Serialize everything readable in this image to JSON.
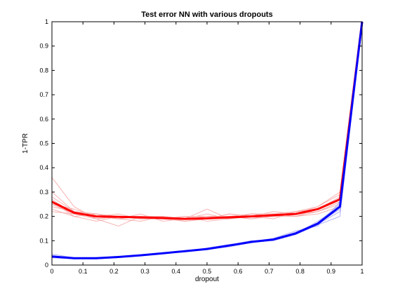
{
  "chart_data": {
    "type": "line",
    "title": "Test error NN with various dropouts",
    "xlabel": "dropout",
    "ylabel": "1-TPR",
    "xlim": [
      0,
      1
    ],
    "ylim": [
      0,
      1
    ],
    "xticks": [
      0,
      0.1,
      0.2,
      0.3,
      0.4,
      0.5,
      0.6,
      0.7,
      0.8,
      0.9,
      1
    ],
    "yticks": [
      0,
      0.1,
      0.2,
      0.3,
      0.4,
      0.5,
      0.6,
      0.7,
      0.8,
      0.9,
      1
    ],
    "x": [
      0,
      0.0714,
      0.1429,
      0.2143,
      0.2857,
      0.3571,
      0.4286,
      0.5,
      0.5714,
      0.6429,
      0.7143,
      0.7857,
      0.8571,
      0.9286,
      1
    ],
    "series": [
      {
        "color": "#ff0000",
        "role": "mean",
        "values": [
          0.26,
          0.215,
          0.2,
          0.198,
          0.196,
          0.193,
          0.19,
          0.192,
          0.196,
          0.2,
          0.205,
          0.21,
          0.23,
          0.27,
          1.0
        ]
      },
      {
        "color": "#0000ff",
        "role": "mean",
        "values": [
          0.035,
          0.028,
          0.028,
          0.033,
          0.04,
          0.048,
          0.057,
          0.066,
          0.08,
          0.095,
          0.105,
          0.13,
          0.17,
          0.24,
          1.0
        ]
      }
    ],
    "runs": [
      {
        "color": "#f5a0a0",
        "lines": [
          [
            0.36,
            0.24,
            0.19,
            0.2,
            0.19,
            0.2,
            0.19,
            0.19,
            0.2,
            0.2,
            0.21,
            0.21,
            0.24,
            0.29,
            1.0
          ],
          [
            0.3,
            0.22,
            0.21,
            0.19,
            0.2,
            0.19,
            0.2,
            0.2,
            0.19,
            0.21,
            0.2,
            0.22,
            0.23,
            0.27,
            1.0
          ],
          [
            0.25,
            0.21,
            0.2,
            0.21,
            0.19,
            0.2,
            0.18,
            0.19,
            0.2,
            0.19,
            0.21,
            0.2,
            0.22,
            0.26,
            1.0
          ],
          [
            0.23,
            0.2,
            0.18,
            0.2,
            0.2,
            0.19,
            0.19,
            0.23,
            0.19,
            0.2,
            0.2,
            0.21,
            0.23,
            0.27,
            1.0
          ],
          [
            0.27,
            0.21,
            0.2,
            0.19,
            0.21,
            0.18,
            0.19,
            0.19,
            0.21,
            0.2,
            0.22,
            0.21,
            0.22,
            0.25,
            1.0
          ],
          [
            0.24,
            0.22,
            0.19,
            0.16,
            0.2,
            0.2,
            0.19,
            0.2,
            0.2,
            0.21,
            0.2,
            0.2,
            0.23,
            0.28,
            1.0
          ],
          [
            0.26,
            0.2,
            0.21,
            0.2,
            0.19,
            0.19,
            0.2,
            0.18,
            0.19,
            0.2,
            0.21,
            0.22,
            0.24,
            0.3,
            1.0
          ],
          [
            0.25,
            0.23,
            0.2,
            0.19,
            0.18,
            0.2,
            0.19,
            0.2,
            0.2,
            0.19,
            0.2,
            0.21,
            0.22,
            0.26,
            1.0
          ],
          [
            0.22,
            0.21,
            0.19,
            0.2,
            0.2,
            0.19,
            0.18,
            0.19,
            0.21,
            0.2,
            0.19,
            0.22,
            0.23,
            0.27,
            1.0
          ],
          [
            0.28,
            0.22,
            0.21,
            0.19,
            0.2,
            0.2,
            0.19,
            0.21,
            0.19,
            0.21,
            0.21,
            0.2,
            0.21,
            0.24,
            1.0
          ]
        ]
      },
      {
        "color": "#a0a0f5",
        "lines": [
          [
            0.045,
            0.03,
            0.026,
            0.03,
            0.042,
            0.05,
            0.055,
            0.07,
            0.085,
            0.095,
            0.1,
            0.125,
            0.165,
            0.2,
            1.0
          ],
          [
            0.03,
            0.025,
            0.03,
            0.035,
            0.038,
            0.046,
            0.06,
            0.064,
            0.075,
            0.092,
            0.108,
            0.135,
            0.175,
            0.25,
            1.0
          ],
          [
            0.038,
            0.027,
            0.025,
            0.032,
            0.04,
            0.05,
            0.058,
            0.066,
            0.082,
            0.1,
            0.102,
            0.13,
            0.17,
            0.23,
            1.0
          ],
          [
            0.033,
            0.03,
            0.029,
            0.034,
            0.041,
            0.047,
            0.055,
            0.068,
            0.08,
            0.094,
            0.11,
            0.14,
            0.16,
            0.26,
            1.0
          ],
          [
            0.036,
            0.028,
            0.028,
            0.033,
            0.039,
            0.049,
            0.057,
            0.065,
            0.078,
            0.096,
            0.104,
            0.128,
            0.18,
            0.24,
            1.0
          ],
          [
            0.04,
            0.026,
            0.031,
            0.032,
            0.04,
            0.048,
            0.059,
            0.067,
            0.083,
            0.093,
            0.103,
            0.132,
            0.168,
            0.22,
            1.0
          ]
        ]
      }
    ],
    "grid": false,
    "legend": "none"
  }
}
